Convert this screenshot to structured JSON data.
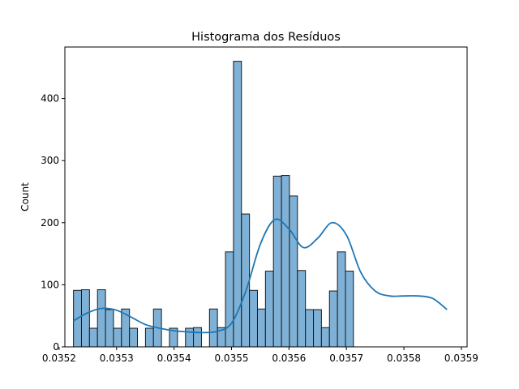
{
  "chart_data": {
    "type": "bar",
    "title": "Histograma dos Resíduos",
    "xlabel": "",
    "ylabel": "Count",
    "xlim": [
      0.03521,
      0.03591
    ],
    "ylim": [
      0,
      483
    ],
    "x_ticks": [
      0.0352,
      0.0353,
      0.0354,
      0.0355,
      0.0356,
      0.0357,
      0.0358,
      0.0359
    ],
    "x_tick_labels": [
      "0.0352",
      "0.0353",
      "0.0354",
      "0.0355",
      "0.0356",
      "0.0357",
      "0.0358",
      "0.0359"
    ],
    "y_ticks": [
      0,
      100,
      200,
      300,
      400
    ],
    "y_tick_labels": [
      "0",
      "100",
      "200",
      "300",
      "400"
    ],
    "bin_start": 0.035225,
    "bin_width": 1.392e-05,
    "values": [
      91,
      92,
      30,
      92,
      60,
      30,
      61,
      30,
      0,
      30,
      61,
      0,
      30,
      0,
      30,
      31,
      0,
      61,
      31,
      153,
      460,
      214,
      91,
      61,
      122,
      275,
      276,
      243,
      123,
      60,
      60,
      31,
      90,
      153,
      122
    ],
    "kde": {
      "x": [
        0.035225,
        0.03525,
        0.035275,
        0.0353,
        0.035325,
        0.03535,
        0.035375,
        0.0354,
        0.035425,
        0.03545,
        0.035475,
        0.0355,
        0.035525,
        0.03555,
        0.035575,
        0.0356,
        0.035625,
        0.03565,
        0.035675,
        0.0357,
        0.035725,
        0.03575,
        0.035775,
        0.0358,
        0.035825,
        0.03585,
        0.035875
      ],
      "y": [
        42,
        55,
        62,
        59,
        48,
        36,
        30,
        26,
        24,
        23,
        25,
        38,
        90,
        165,
        205,
        190,
        160,
        175,
        200,
        180,
        120,
        90,
        82,
        82,
        82,
        78,
        60
      ]
    },
    "bar_color": "#7fb0d5",
    "bar_edge_color": "#1a1a1a",
    "kde_color": "#1f77b4",
    "grid": false,
    "legend": "none"
  }
}
